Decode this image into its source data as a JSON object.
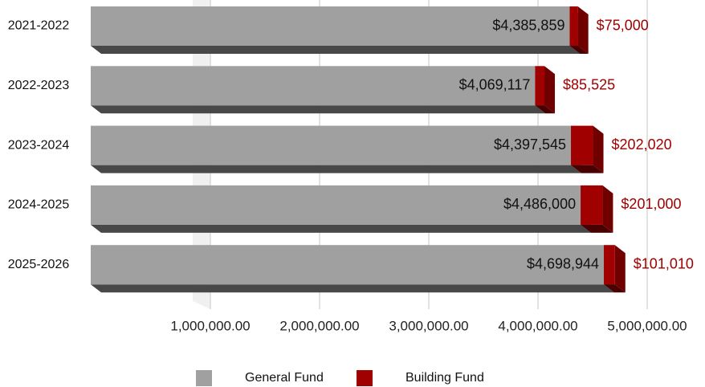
{
  "chart_data": {
    "type": "stacked-bar-horizontal-3d",
    "categories": [
      "2021-2022",
      "2022-2023",
      "2023-2024",
      "2024-2025",
      "2025-2026"
    ],
    "series": [
      {
        "name": "General Fund",
        "color": "#a0a0a0",
        "values": [
          4385859,
          4069117,
          4397545,
          4486000,
          4698944
        ],
        "value_labels": [
          "$4,385,859",
          "$4,069,117",
          "$4,397,545",
          "$4,486,000",
          "$4,698,944"
        ]
      },
      {
        "name": "Building Fund",
        "color": "#a00000",
        "values": [
          75000,
          85525,
          202020,
          201000,
          101010
        ],
        "value_labels": [
          "$75,000",
          "$85,525",
          "$202,020",
          "$201,000",
          "$101,010"
        ]
      }
    ],
    "xlim": [
      0,
      5000000
    ],
    "xticks": [
      {
        "value": 1000000,
        "label": "1,000,000.00"
      },
      {
        "value": 2000000,
        "label": "2,000,000.00"
      },
      {
        "value": 3000000,
        "label": "3,000,000.00"
      },
      {
        "value": 4000000,
        "label": "4,000,000.00"
      },
      {
        "value": 5000000,
        "label": "5,000,000.00"
      }
    ],
    "grid": true,
    "legend": "bottom"
  }
}
